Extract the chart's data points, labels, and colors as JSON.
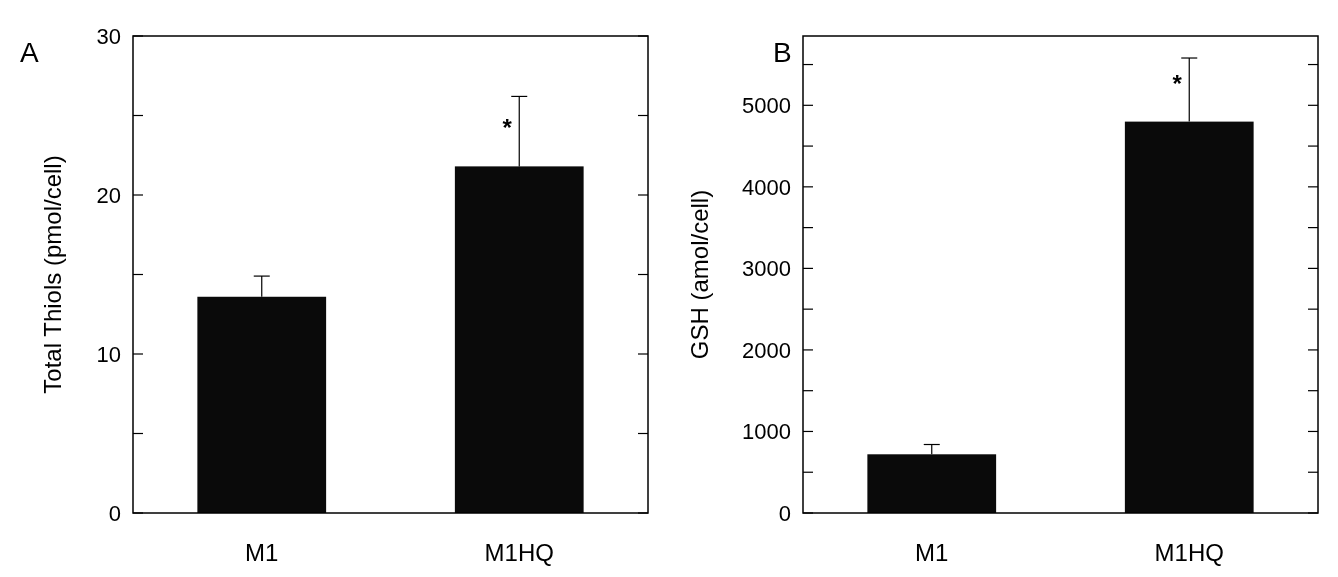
{
  "chart_data": [
    {
      "type": "bar",
      "title": "A",
      "ylabel": "Total Thiols (pmol/cell)",
      "categories": [
        "M1",
        "M1HQ"
      ],
      "values": [
        13.6,
        21.8
      ],
      "errors": [
        [
          13.6,
          14.9
        ],
        [
          21.8,
          26.2
        ]
      ],
      "color": "#0a0a0a",
      "ylim": [
        0,
        30
      ],
      "yticks": [
        0,
        {
          "value": 5,
          "label": null
        },
        10,
        {
          "value": 15,
          "label": null
        },
        20,
        {
          "value": 25,
          "label": null
        },
        30
      ],
      "annotations": [
        "*"
      ]
    },
    {
      "type": "bar",
      "title": "B",
      "ylabel": "GSH (amol/cell)",
      "categories": [
        "M1",
        "M1HQ"
      ],
      "values": [
        720,
        4800
      ],
      "errors": [
        [
          720,
          840
        ],
        [
          4800,
          5580
        ]
      ],
      "color": "#0a0a0a",
      "ylim": [
        0,
        5850
      ],
      "yticks": [
        0,
        {
          "value": 500,
          "label": null
        },
        1000,
        {
          "value": 1500,
          "label": null
        },
        2000,
        {
          "value": 2500,
          "label": null
        },
        3000,
        {
          "value": 3500,
          "label": null
        },
        4000,
        {
          "value": 4500,
          "label": null
        },
        5000,
        {
          "value": 5500,
          "label": null
        }
      ],
      "annotations": [
        "*"
      ]
    }
  ]
}
